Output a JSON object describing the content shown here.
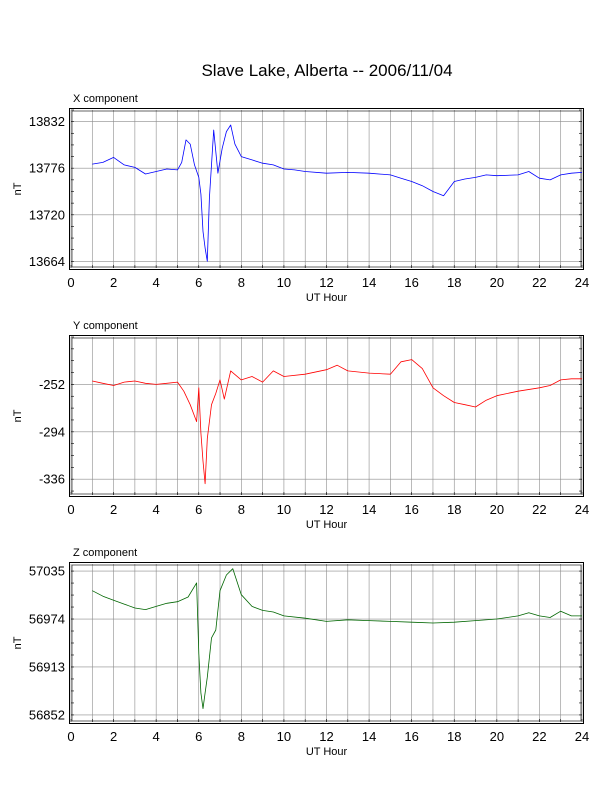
{
  "page_title": "Slave Lake, Alberta -- 2006/11/04",
  "chart_data": [
    {
      "type": "line",
      "title": "X component",
      "xlabel": "UT Hour",
      "ylabel": "nT",
      "xlim": [
        0,
        24
      ],
      "ylim": [
        13656,
        13846
      ],
      "xticks": [
        0,
        2,
        4,
        6,
        8,
        10,
        12,
        14,
        16,
        18,
        20,
        22,
        24
      ],
      "yticks": [
        13664,
        13720,
        13776,
        13832
      ],
      "grid": true,
      "color": "#0000ff",
      "series": [
        {
          "x": [
            1.0,
            1.5,
            2.0,
            2.5,
            3.0,
            3.5,
            4.0,
            4.5,
            5.0,
            5.2,
            5.4,
            5.6,
            5.8,
            6.0,
            6.1,
            6.2,
            6.3,
            6.4,
            6.5,
            6.7,
            6.9,
            7.1,
            7.3,
            7.5,
            7.7,
            8.0,
            8.5,
            9.0,
            9.5,
            10.0,
            10.5,
            11.0,
            12.0,
            13.0,
            14.0,
            15.0,
            15.5,
            16.0,
            16.5,
            17.0,
            17.5,
            18.0,
            18.5,
            19.0,
            19.5,
            20.0,
            21.0,
            21.5,
            22.0,
            22.5,
            23.0,
            23.5,
            24.0
          ],
          "y": [
            13781,
            13783,
            13789,
            13780,
            13777,
            13769,
            13772,
            13775,
            13774,
            13783,
            13810,
            13805,
            13780,
            13765,
            13745,
            13700,
            13680,
            13664,
            13740,
            13822,
            13770,
            13800,
            13820,
            13828,
            13805,
            13790,
            13786,
            13782,
            13780,
            13775,
            13774,
            13772,
            13770,
            13771,
            13770,
            13768,
            13764,
            13760,
            13755,
            13748,
            13743,
            13760,
            13763,
            13765,
            13768,
            13767,
            13768,
            13772,
            13764,
            13762,
            13768,
            13770,
            13771
          ]
        }
      ]
    },
    {
      "type": "line",
      "title": "Y component",
      "xlabel": "UT Hour",
      "ylabel": "nT",
      "xlim": [
        0,
        24
      ],
      "ylim": [
        -350,
        -210
      ],
      "xticks": [
        0,
        2,
        4,
        6,
        8,
        10,
        12,
        14,
        16,
        18,
        20,
        22,
        24
      ],
      "yticks": [
        -252,
        -294,
        -336
      ],
      "grid": true,
      "color": "#ff0000",
      "series": [
        {
          "x": [
            1.0,
            1.5,
            2.0,
            2.5,
            3.0,
            3.5,
            4.0,
            4.5,
            5.0,
            5.3,
            5.6,
            5.9,
            6.0,
            6.1,
            6.2,
            6.3,
            6.4,
            6.6,
            6.8,
            7.0,
            7.2,
            7.5,
            8.0,
            8.5,
            9.0,
            9.5,
            10.0,
            11.0,
            12.0,
            12.5,
            13.0,
            14.0,
            15.0,
            15.5,
            16.0,
            16.5,
            17.0,
            17.5,
            18.0,
            18.5,
            19.0,
            19.5,
            20.0,
            21.0,
            22.0,
            22.5,
            23.0,
            23.5,
            24.0
          ],
          "y": [
            -249,
            -251,
            -253,
            -250,
            -249,
            -251,
            -252,
            -251,
            -250,
            -258,
            -270,
            -285,
            -255,
            -295,
            -320,
            -340,
            -300,
            -270,
            -260,
            -248,
            -265,
            -240,
            -248,
            -245,
            -250,
            -240,
            -245,
            -243,
            -239,
            -235,
            -240,
            -242,
            -243,
            -232,
            -230,
            -238,
            -255,
            -262,
            -268,
            -270,
            -272,
            -266,
            -262,
            -258,
            -255,
            -253,
            -248,
            -247,
            -247
          ]
        }
      ]
    },
    {
      "type": "line",
      "title": "Z component",
      "xlabel": "UT Hour",
      "ylabel": "nT",
      "xlim": [
        0,
        24
      ],
      "ylim": [
        56843,
        57044
      ],
      "xticks": [
        0,
        2,
        4,
        6,
        8,
        10,
        12,
        14,
        16,
        18,
        20,
        22,
        24
      ],
      "yticks": [
        57035,
        56974,
        56913,
        56852
      ],
      "grid": true,
      "color": "#006600",
      "series": [
        {
          "x": [
            1.0,
            1.5,
            2.0,
            2.5,
            3.0,
            3.5,
            4.0,
            4.5,
            5.0,
            5.5,
            5.9,
            6.0,
            6.1,
            6.2,
            6.3,
            6.4,
            6.6,
            6.8,
            7.0,
            7.3,
            7.6,
            8.0,
            8.5,
            9.0,
            9.5,
            10.0,
            11.0,
            12.0,
            13.0,
            14.0,
            15.0,
            16.0,
            17.0,
            18.0,
            19.0,
            20.0,
            21.0,
            21.5,
            22.0,
            22.5,
            23.0,
            23.5,
            24.0
          ],
          "y": [
            57010,
            57003,
            56998,
            56993,
            56988,
            56986,
            56990,
            56994,
            56996,
            57002,
            57020,
            56930,
            56880,
            56860,
            56880,
            56900,
            56950,
            56960,
            57010,
            57030,
            57038,
            57005,
            56990,
            56985,
            56983,
            56978,
            56975,
            56971,
            56973,
            56972,
            56971,
            56970,
            56969,
            56970,
            56972,
            56974,
            56978,
            56982,
            56978,
            56976,
            56984,
            56978,
            56978
          ]
        }
      ]
    }
  ]
}
